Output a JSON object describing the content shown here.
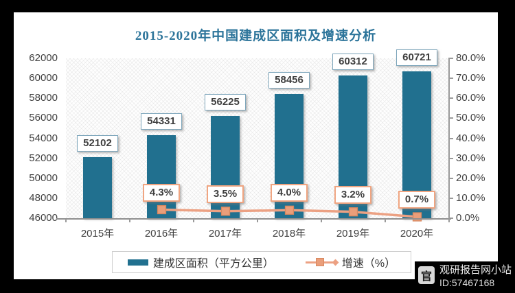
{
  "title": "2015-2020年中国建成区面积及增速分析",
  "chart_data": {
    "type": "bar+line combo",
    "categories": [
      "2015年",
      "2016年",
      "2017年",
      "2018年",
      "2019年",
      "2020年"
    ],
    "series": [
      {
        "name": "建成区面积（平方公里）",
        "chart_type": "bar",
        "axis": "left",
        "color": "#21708F",
        "values": [
          52102,
          54331,
          56225,
          58456,
          60312,
          60721
        ],
        "data_labels": [
          "52102",
          "54331",
          "56225",
          "58456",
          "60312",
          "60721"
        ]
      },
      {
        "name": "增速（%）",
        "chart_type": "line",
        "axis": "right",
        "color": "#ECA183",
        "values": [
          null,
          4.3,
          3.5,
          4.0,
          3.2,
          0.7
        ],
        "data_labels": [
          "",
          "4.3%",
          "3.5%",
          "4.0%",
          "3.2%",
          "0.7%"
        ]
      }
    ],
    "left_axis": {
      "min": 46000,
      "max": 62000,
      "step": 2000,
      "ticks": [
        "46000",
        "48000",
        "50000",
        "52000",
        "54000",
        "56000",
        "58000",
        "60000",
        "62000"
      ]
    },
    "right_axis": {
      "min": 0,
      "max": 80,
      "step": 10,
      "ticks": [
        "0.0%",
        "10.0%",
        "20.0%",
        "30.0%",
        "40.0%",
        "50.0%",
        "60.0%",
        "70.0%",
        "80.0%"
      ]
    },
    "legend_position": "bottom",
    "grid": "none",
    "plot_background": "diagonal-hatch"
  },
  "watermark": {
    "site_name": "观研报告网小站",
    "id_label": "ID:57467168",
    "logo_glyph": "官"
  },
  "colors": {
    "title": "#2C749A",
    "bar": "#21708F",
    "bar_label_border": "#7FA7BC",
    "line": "#ECA183",
    "marker_fill": "#EA9E7A",
    "marker_stroke": "#D8885F",
    "growth_label_border": "#F0A581",
    "axis_text": "#404040",
    "axis_line": "#9A9A9A",
    "panel_bg": "#FFFFFF",
    "frame_bg": "#000000"
  }
}
